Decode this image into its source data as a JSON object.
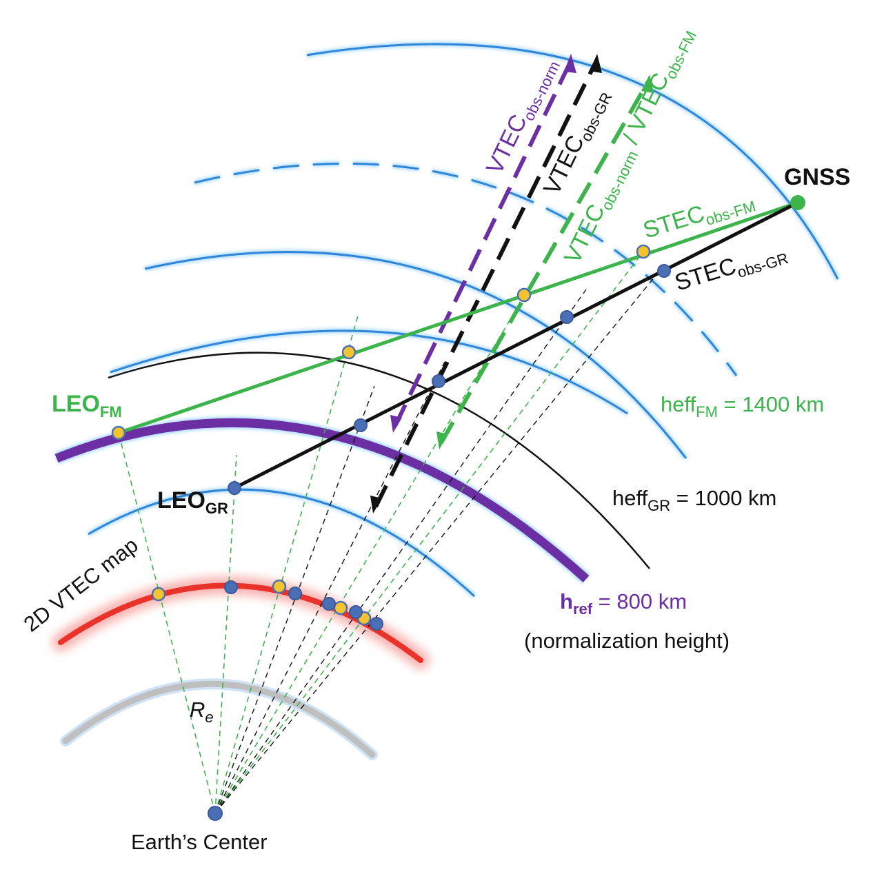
{
  "labels": {
    "gnss": "GNSS",
    "leo_fm": "LEO",
    "leo_fm_sub": "FM",
    "leo_gr": "LEO",
    "leo_gr_sub": "GR",
    "vtec_norm": "VTEC",
    "vtec_norm_sub": "obs-norm",
    "vtec_gr": "VTEC",
    "vtec_gr_sub": "obs-GR",
    "vtec_combo_a": "VTEC",
    "vtec_combo_a_sub": "obs-norm",
    "vtec_combo_sep": " / ",
    "vtec_combo_b": "VTEC",
    "vtec_combo_b_sub": "obs-FM",
    "stec_fm": "STEC",
    "stec_fm_sub": "obs-FM",
    "stec_gr": "STEC",
    "stec_gr_sub": "obs-GR",
    "heff_fm_pre": "heff",
    "heff_fm_sub": "FM",
    "heff_fm_val": " = 1400 km",
    "heff_gr_pre": "heff",
    "heff_gr_sub": "GR",
    "heff_gr_val": " = 1000 km",
    "href_pre": "h",
    "href_sub": "ref",
    "href_val": " = 800 km",
    "normalization": "(normalization height)",
    "vtec_map": "2D VTEC map",
    "re": "R",
    "re_sub": "e",
    "earth_center": "Earth’s Center"
  },
  "colors": {
    "blue_shell": "#2f86d8",
    "blue_glow": "#aedcff",
    "green": "#3cb44b",
    "purple": "#6c2fa3",
    "black": "#111111",
    "red": "#e8322a",
    "red_glow": "#f7b3b0",
    "gray": "#bfbfbf",
    "gray_glow": "#cfe2f5",
    "point_yellow": "#f4c330",
    "point_blue": "#4a6fb5"
  }
}
